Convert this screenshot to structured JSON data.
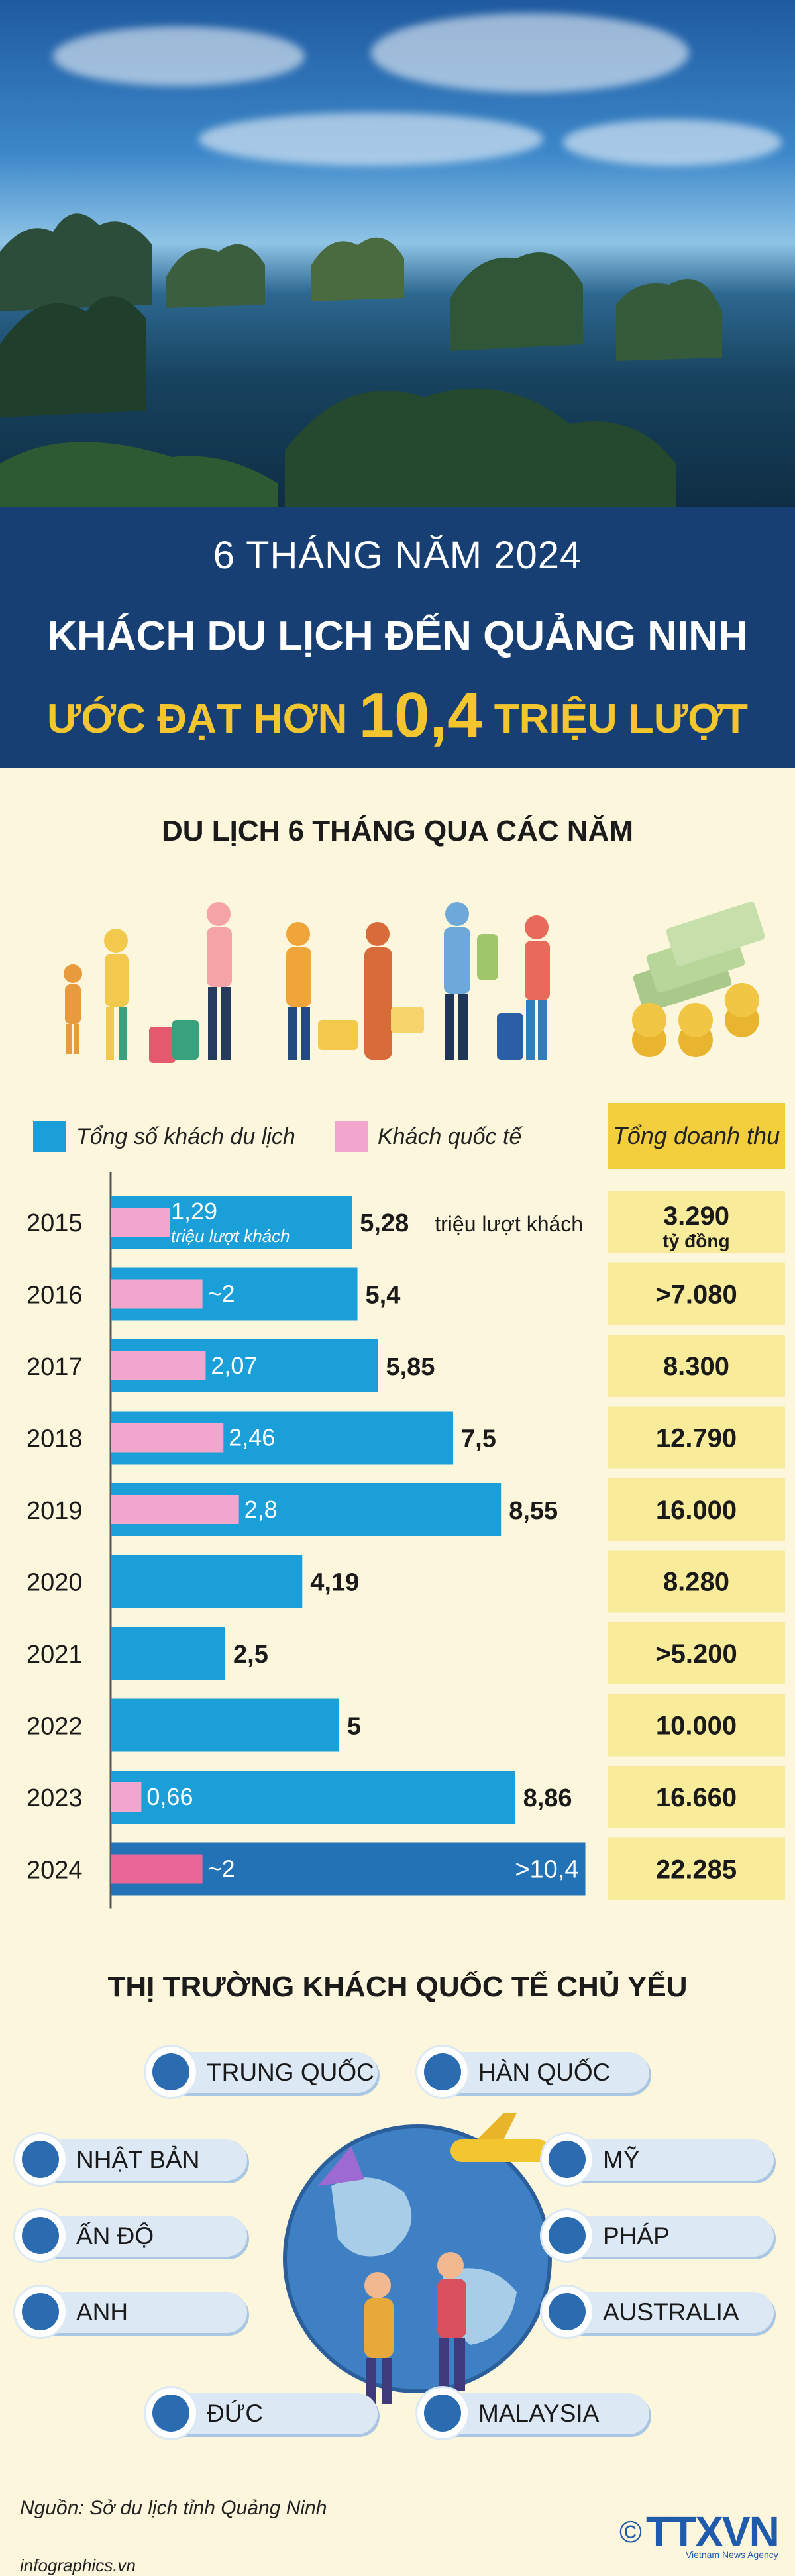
{
  "header": {
    "subtitle": "6 THÁNG NĂM 2024",
    "title": "KHÁCH DU LỊCH ĐẾN QUẢNG NINH",
    "highlight_pre": "ƯỚC ĐẠT HƠN",
    "highlight_num": "10,4",
    "highlight_post": "TRIỆU LƯỢT"
  },
  "section1_title": "DU LỊCH 6 THÁNG QUA CÁC NĂM",
  "legend": {
    "total": "Tổng số khách du lịch",
    "international": "Khách quốc tế",
    "revenue": "Tổng doanh thu"
  },
  "colors": {
    "total_bar": "#1b9fd8",
    "international_bar": "#f2a6ce",
    "total_bar_2024": "#2272b5",
    "international_bar_2024": "#e96699",
    "revenue_box": "#f8eb9a",
    "header_bg": "#173f73",
    "highlight": "#f3c62f"
  },
  "chart_data": {
    "type": "bar",
    "orientation": "horizontal",
    "title": "DU LỊCH 6 THÁNG QUA CÁC NĂM",
    "categories": [
      "2015",
      "2016",
      "2017",
      "2018",
      "2019",
      "2020",
      "2021",
      "2022",
      "2023",
      "2024"
    ],
    "series": [
      {
        "name": "Tổng số khách du lịch",
        "values": [
          5.28,
          5.4,
          5.85,
          7.5,
          8.55,
          4.19,
          2.5,
          5,
          8.86,
          10.4
        ],
        "labels": [
          "5,28",
          "5,4",
          "5,85",
          "7,5",
          "8,55",
          "4,19",
          "2,5",
          "5",
          "8,86",
          ">10,4"
        ]
      },
      {
        "name": "Khách quốc tế",
        "values": [
          1.29,
          2,
          2.07,
          2.46,
          2.8,
          null,
          null,
          null,
          0.66,
          2
        ],
        "labels": [
          "1,29",
          "~2",
          "2,07",
          "2,46",
          "2,8",
          "",
          "",
          "",
          "0,66",
          "~2"
        ]
      }
    ],
    "revenue": {
      "name": "Tổng doanh thu",
      "labels": [
        "3.290",
        ">7.080",
        "8.300",
        "12.790",
        "16.000",
        "8.280",
        ">5.200",
        "10.000",
        "16.660",
        "22.285"
      ]
    },
    "unit_total": "triệu lượt khách",
    "unit_international": "triệu lượt khách",
    "unit_revenue": "tỷ đồng",
    "xlim": [
      0,
      10.4
    ]
  },
  "section2_title": "THỊ TRƯỜNG KHÁCH QUỐC TẾ CHỦ YẾU",
  "markets": [
    "TRUNG QUỐC",
    "HÀN QUỐC",
    "NHẬT BẢN",
    "MỸ",
    "ẤN ĐỘ",
    "PHÁP",
    "ANH",
    "AUSTRALIA",
    "ĐỨC",
    "MALAYSIA"
  ],
  "footer": {
    "source": "Nguồn: Sở du lịch tỉnh Quảng Ninh",
    "site": "infographics.vn",
    "copyright": "©",
    "logo_text": "TTXVN",
    "logo_sub": "Vietnam News Agency"
  }
}
